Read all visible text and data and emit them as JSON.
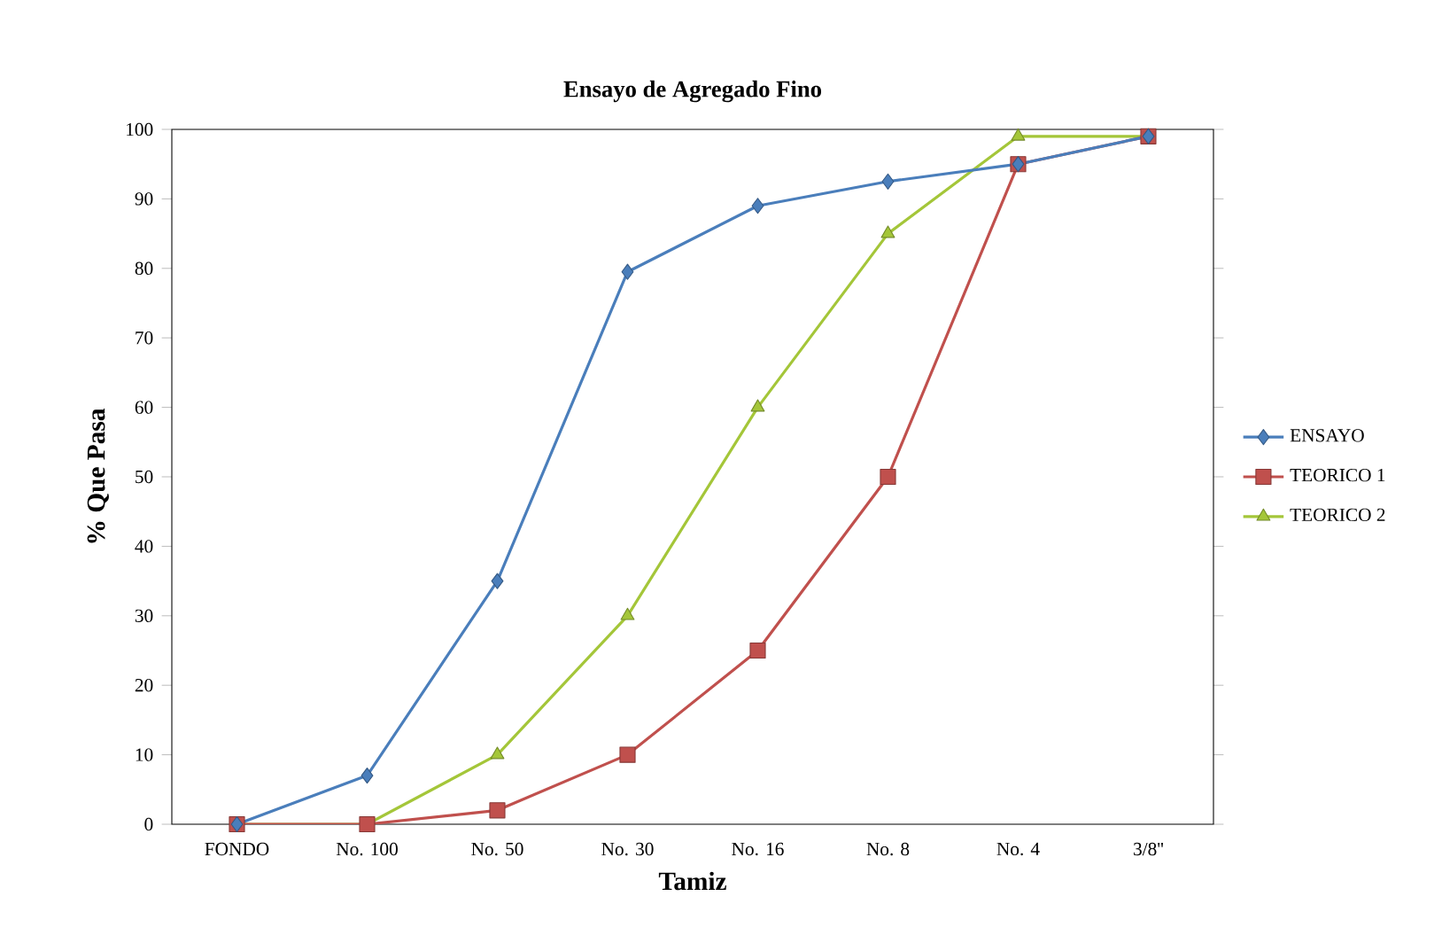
{
  "chart_data": {
    "type": "line",
    "title": "Ensayo de Agregado Fino",
    "xlabel": "Tamiz",
    "ylabel": "% Que Pasa",
    "categories": [
      "FONDO",
      "No. 100",
      "No. 50",
      "No. 30",
      "No. 16",
      "No. 8",
      "No. 4",
      "3/8''"
    ],
    "series": [
      {
        "name": "ENSAYO",
        "color": "#4a7ebb",
        "marker": "diamond",
        "values": [
          0,
          7,
          35,
          79.5,
          89,
          92.5,
          95,
          99
        ]
      },
      {
        "name": "TEORICO 1",
        "color": "#c0504d",
        "marker": "square",
        "values": [
          0,
          0,
          2,
          10,
          25,
          50,
          95,
          99
        ]
      },
      {
        "name": "TEORICO 2",
        "color": "#a4c639",
        "marker": "triangle",
        "values": [
          0,
          0,
          10,
          30,
          60,
          85,
          99,
          99
        ]
      }
    ],
    "ylim": [
      0,
      100
    ],
    "yticks": [
      0,
      10,
      20,
      30,
      40,
      50,
      60,
      70,
      80,
      90,
      100
    ],
    "grid": false,
    "legend": "right",
    "line_style": "solid"
  }
}
